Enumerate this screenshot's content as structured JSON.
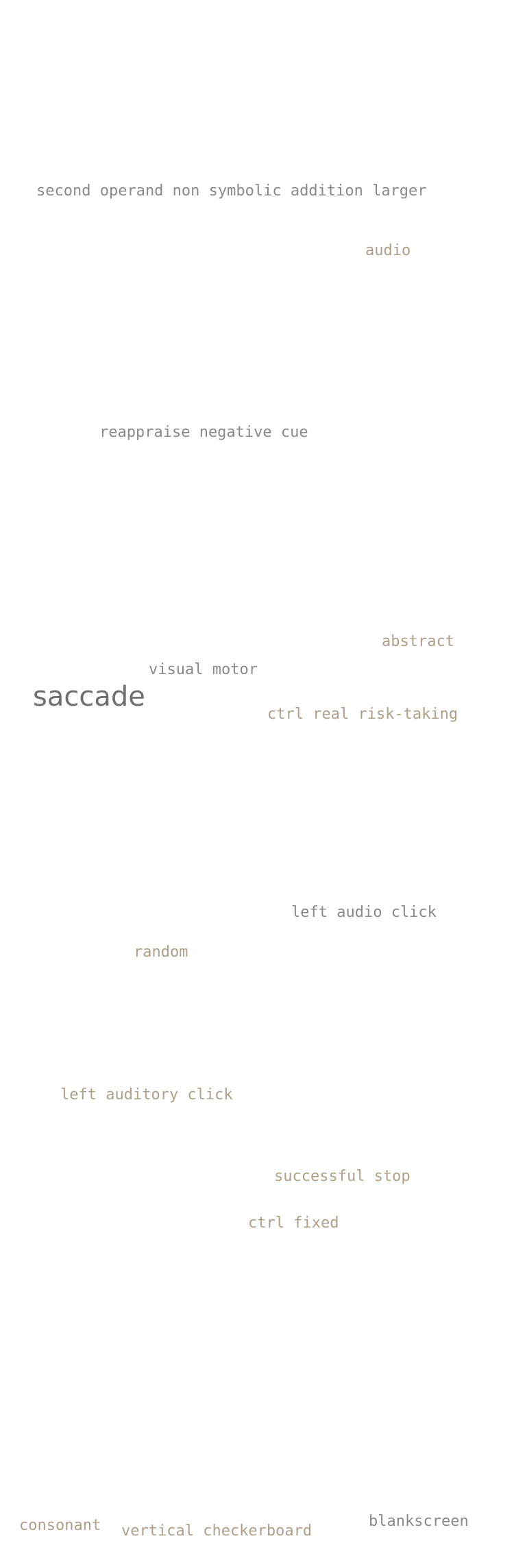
{
  "colors": {
    "background": "#ffffff",
    "gray": "#8a8a8a",
    "tan": "#b0a08a",
    "dark": "#6f6f6f"
  },
  "words": {
    "w1": "second operand non symbolic addition larger",
    "w2": "audio",
    "w3": "reappraise negative cue",
    "w4": "abstract",
    "w5": "visual motor",
    "w6": "saccade",
    "w7": "ctrl real risk-taking",
    "w8": "left audio click",
    "w9": "random",
    "w10": "left auditory click",
    "w11": "successful stop",
    "w12": "ctrl fixed",
    "w13": "consonant",
    "w14": "vertical checkerboard",
    "w15": "blankscreen"
  }
}
